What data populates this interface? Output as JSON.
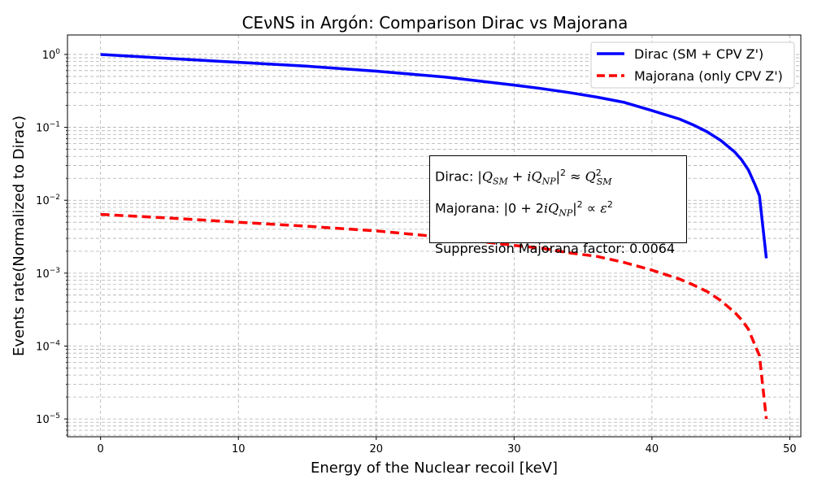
{
  "chart_data": {
    "type": "line",
    "title": "CEνNS in Argón: Comparison Dirac vs Majorana",
    "xlabel": "Energy of the Nuclear recoil [keV]",
    "ylabel": "Events rate(Normalized to  Dirac)",
    "xlim": [
      -2.4,
      50.8
    ],
    "ylim": [
      5.7e-06,
      1.85
    ],
    "yscale": "log",
    "grid": true,
    "x_ticks": [
      0,
      10,
      20,
      30,
      40,
      50
    ],
    "y_ticks": [
      {
        "base": "10",
        "exp": "−5",
        "value": 1e-05
      },
      {
        "base": "10",
        "exp": "−4",
        "value": 0.0001
      },
      {
        "base": "10",
        "exp": "−3",
        "value": 0.001
      },
      {
        "base": "10",
        "exp": "−2",
        "value": 0.01
      },
      {
        "base": "10",
        "exp": "−1",
        "value": 0.1
      },
      {
        "base": "10",
        "exp": "0",
        "value": 1
      }
    ],
    "legend_position": "top-right",
    "series": [
      {
        "name": "Dirac (SM + CPV Z')",
        "color": "#0000ff",
        "style": "solid",
        "x": [
          0,
          5,
          10,
          15,
          20,
          25,
          30,
          32,
          34,
          36,
          38,
          40,
          42,
          43,
          44,
          45,
          46,
          46.5,
          47,
          47.5,
          47.8,
          48.3
        ],
        "y": [
          1.0,
          0.88,
          0.78,
          0.69,
          0.59,
          0.49,
          0.38,
          0.34,
          0.3,
          0.26,
          0.22,
          0.17,
          0.13,
          0.108,
          0.087,
          0.066,
          0.046,
          0.036,
          0.026,
          0.016,
          0.0115,
          0.0016
        ]
      },
      {
        "name": "Majorana (only CPV Z')",
        "color": "#ff0000",
        "style": "dashed",
        "x": [
          0,
          5,
          10,
          15,
          20,
          25,
          30,
          32,
          34,
          36,
          38,
          40,
          42,
          43,
          44,
          45,
          46,
          46.5,
          47,
          47.5,
          47.8,
          48.3
        ],
        "y": [
          0.0064,
          0.0057,
          0.005,
          0.0044,
          0.0038,
          0.0031,
          0.0024,
          0.0022,
          0.0019,
          0.0017,
          0.0014,
          0.0011,
          0.00083,
          0.00069,
          0.00056,
          0.00042,
          0.00029,
          0.00023,
          0.00017,
          0.0001,
          7.4e-05,
          1e-05
        ]
      }
    ]
  },
  "annotation": {
    "dirac_prefix": "Dirac: ",
    "majorana_prefix": "Majorana: ",
    "suppression": "Suppression Majorana factor: 0.0064"
  }
}
